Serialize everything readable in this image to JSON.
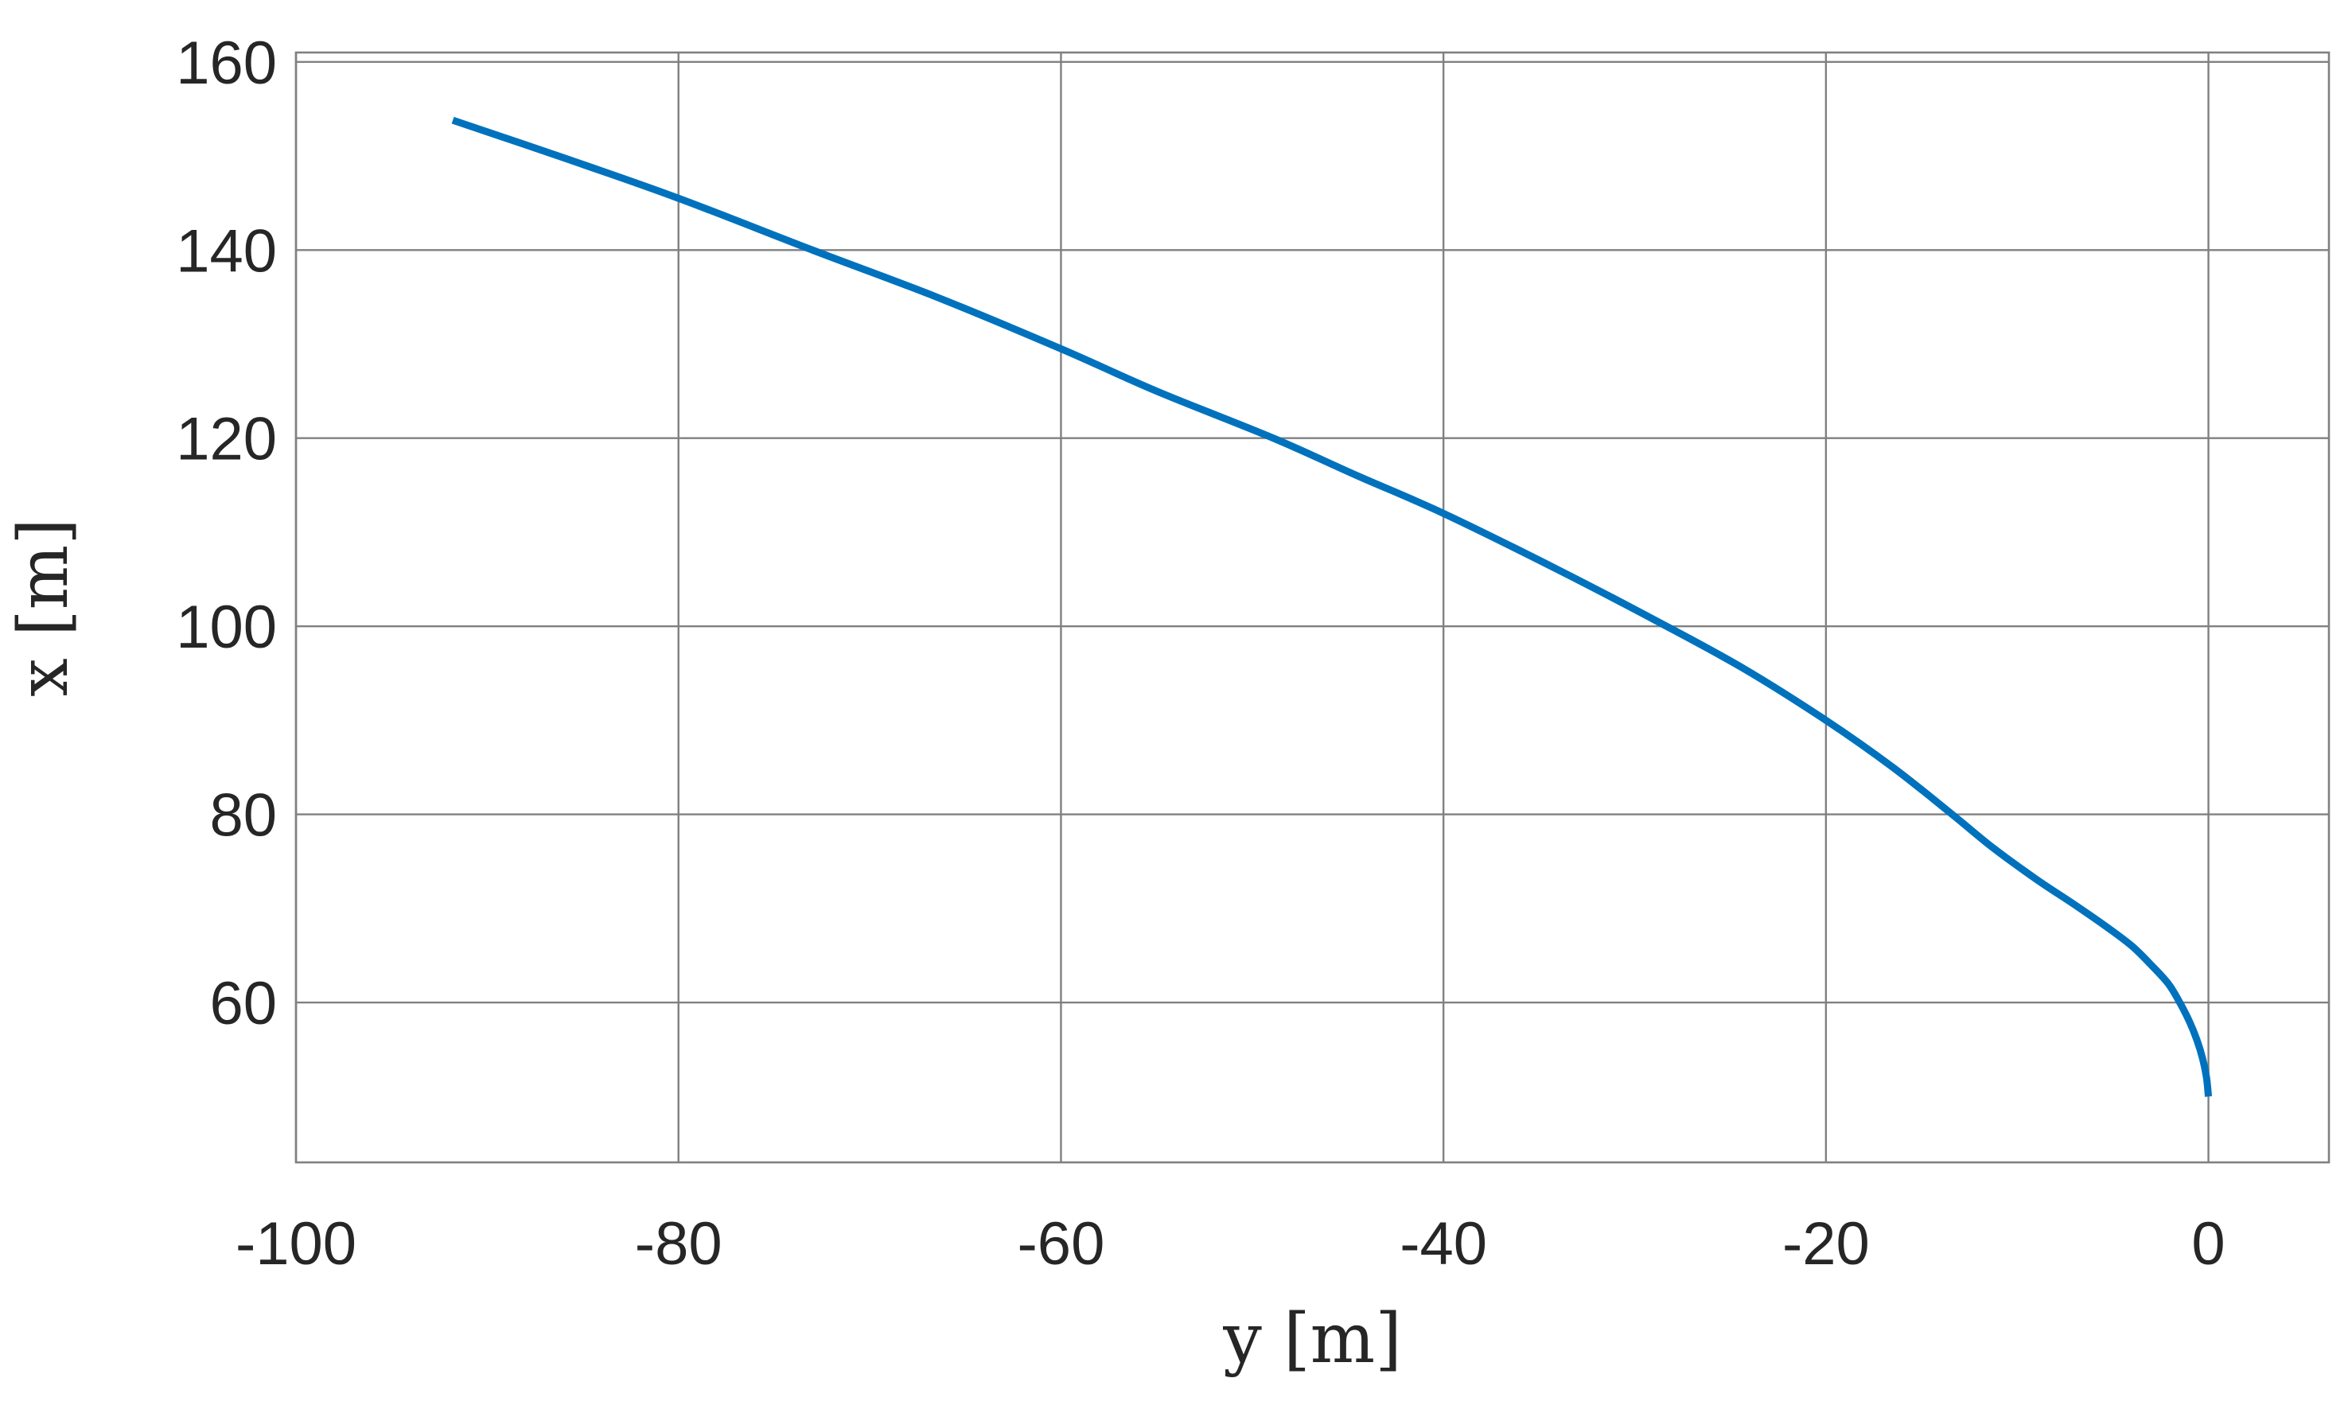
{
  "chart_data": {
    "type": "line",
    "title": "",
    "xlabel": "y [m]",
    "ylabel": "x [m]",
    "xlim": [
      -100,
      6.3
    ],
    "ylim": [
      43,
      161
    ],
    "xticks": [
      -100,
      -80,
      -60,
      -40,
      -20,
      0
    ],
    "yticks": [
      60,
      80,
      100,
      120,
      140,
      160
    ],
    "xtick_labels": [
      "-100",
      "-80",
      "-60",
      "-40",
      "-20",
      "0"
    ],
    "ytick_labels": [
      "60",
      "80",
      "100",
      "120",
      "140",
      "160"
    ],
    "grid": true,
    "legend": "none",
    "series": [
      {
        "color": "#0072BD",
        "x": [
          0,
          -0.1,
          -0.3,
          -0.6,
          -1.0,
          -1.5,
          -2.1,
          -3.0,
          -4.0,
          -5.3,
          -7.0,
          -9.0,
          -11.3,
          -13.4,
          -16.5,
          -20.0,
          -24.3,
          -28.8,
          -34.0,
          -40.0,
          -44.5,
          -48.9,
          -55.0,
          -60.0,
          -66.5,
          -73.0,
          -80.0,
          -86.0,
          -91.8
        ],
        "y": [
          50,
          52,
          54,
          56,
          58,
          60,
          62,
          64,
          66,
          68,
          70.4,
          73.1,
          76.5,
          80,
          85,
          90,
          95.5,
          100.5,
          106,
          112,
          116,
          120,
          125,
          129.5,
          135,
          140,
          145.5,
          149.8,
          153.8
        ]
      }
    ]
  }
}
